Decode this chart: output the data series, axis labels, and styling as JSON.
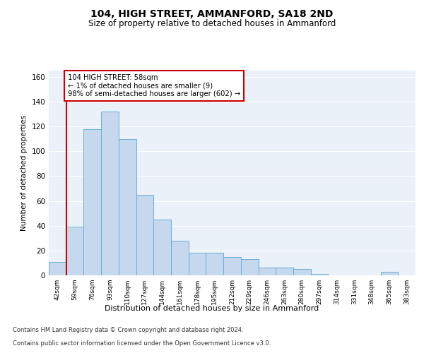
{
  "title1": "104, HIGH STREET, AMMANFORD, SA18 2ND",
  "title2": "Size of property relative to detached houses in Ammanford",
  "xlabel": "Distribution of detached houses by size in Ammanford",
  "ylabel": "Number of detached properties",
  "categories": [
    "42sqm",
    "59sqm",
    "76sqm",
    "93sqm",
    "110sqm",
    "127sqm",
    "144sqm",
    "161sqm",
    "178sqm",
    "195sqm",
    "212sqm",
    "229sqm",
    "246sqm",
    "263sqm",
    "280sqm",
    "297sqm",
    "314sqm",
    "331sqm",
    "348sqm",
    "365sqm",
    "383sqm"
  ],
  "values": [
    11,
    39,
    118,
    132,
    110,
    65,
    45,
    28,
    18,
    18,
    15,
    13,
    6,
    6,
    5,
    1,
    0,
    0,
    0,
    3,
    0
  ],
  "bar_color": "#c5d8ed",
  "bar_edge_color": "#6aaed6",
  "highlight_line_color": "#cc0000",
  "highlight_bar_index": 1,
  "annotation_text": "104 HIGH STREET: 58sqm\n← 1% of detached houses are smaller (9)\n98% of semi-detached houses are larger (602) →",
  "annotation_box_color": "#ffffff",
  "annotation_box_edge_color": "#cc0000",
  "ylim": [
    0,
    165
  ],
  "yticks": [
    0,
    20,
    40,
    60,
    80,
    100,
    120,
    140,
    160
  ],
  "footer1": "Contains HM Land Registry data © Crown copyright and database right 2024.",
  "footer2": "Contains public sector information licensed under the Open Government Licence v3.0.",
  "bg_color": "#eaf1f8",
  "fig_bg_color": "#ffffff"
}
